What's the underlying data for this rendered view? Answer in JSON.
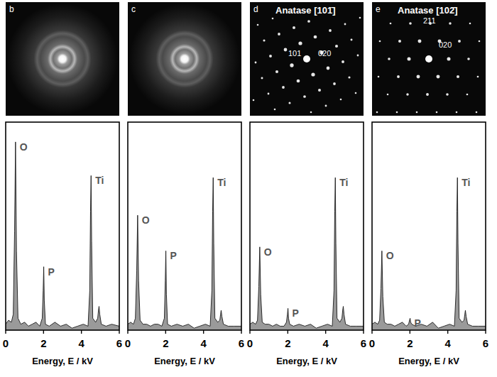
{
  "patterns": [
    {
      "letter": "b",
      "type": "rings"
    },
    {
      "letter": "c",
      "type": "rings"
    },
    {
      "letter": "d",
      "type": "spots",
      "title": "Anatase [101̄]",
      "spot_labels": [
        "101",
        "020"
      ]
    },
    {
      "letter": "e",
      "type": "spots",
      "title": "Anatase [102̄]",
      "spot_labels": [
        "211",
        "020"
      ]
    }
  ],
  "chart_data": [
    {
      "type": "area",
      "xlabel": "Energy, E / kV",
      "xlim": [
        0,
        6
      ],
      "xticks": [
        0,
        2,
        4,
        6
      ],
      "ylim": [
        0,
        105
      ],
      "tick_labels": "x",
      "color": "#9a9a9a",
      "x": [
        0,
        0.15,
        0.3,
        0.4,
        0.47,
        0.52,
        0.57,
        0.65,
        0.8,
        1.0,
        1.2,
        1.4,
        1.6,
        1.8,
        1.93,
        1.98,
        2.01,
        2.04,
        2.1,
        2.3,
        2.6,
        2.9,
        3.2,
        3.5,
        3.8,
        4.1,
        4.35,
        4.44,
        4.48,
        4.51,
        4.54,
        4.6,
        4.75,
        4.86,
        4.9,
        4.93,
        4.97,
        5.05,
        5.3,
        5.6,
        6.0
      ],
      "values": [
        3,
        5,
        4,
        8,
        50,
        95,
        40,
        6,
        3,
        4,
        2,
        3,
        4,
        2,
        6,
        20,
        32,
        15,
        3,
        2,
        4,
        2,
        3,
        1,
        2,
        3,
        2,
        20,
        60,
        78,
        45,
        6,
        4,
        6,
        10,
        12,
        8,
        3,
        2,
        3,
        2
      ],
      "annotations": [
        {
          "text": "O",
          "x": 0.52
        },
        {
          "text": "P",
          "x": 2.01
        },
        {
          "text": "Ti",
          "x": 4.51
        }
      ]
    },
    {
      "type": "area",
      "xlabel": "Energy, E / kV",
      "xlim": [
        0,
        6
      ],
      "xticks": [
        0,
        2,
        4,
        6
      ],
      "ylim": [
        0,
        105
      ],
      "tick_labels": "x",
      "color": "#9a9a9a",
      "x": [
        0,
        0.15,
        0.3,
        0.4,
        0.47,
        0.52,
        0.57,
        0.65,
        0.8,
        1.0,
        1.2,
        1.4,
        1.6,
        1.8,
        1.93,
        1.98,
        2.01,
        2.04,
        2.1,
        2.3,
        2.6,
        2.9,
        3.2,
        3.5,
        3.8,
        4.1,
        4.35,
        4.44,
        4.48,
        4.51,
        4.54,
        4.6,
        4.75,
        4.86,
        4.9,
        4.93,
        4.97,
        5.05,
        5.3,
        5.6,
        6.0
      ],
      "values": [
        3,
        4,
        3,
        6,
        30,
        58,
        25,
        5,
        3,
        3,
        2,
        3,
        3,
        2,
        6,
        25,
        40,
        18,
        3,
        2,
        3,
        2,
        3,
        1,
        2,
        3,
        2,
        20,
        60,
        77,
        44,
        6,
        4,
        5,
        8,
        10,
        7,
        3,
        2,
        2,
        2
      ],
      "annotations": [
        {
          "text": "O",
          "x": 0.52
        },
        {
          "text": "P",
          "x": 2.01
        },
        {
          "text": "Ti",
          "x": 4.51
        }
      ]
    },
    {
      "type": "area",
      "xlabel": "Energy, E / kV",
      "xlim": [
        0,
        6
      ],
      "xticks": [
        0,
        2,
        4,
        6
      ],
      "ylim": [
        0,
        105
      ],
      "tick_labels": "x",
      "color": "#9a9a9a",
      "x": [
        0,
        0.15,
        0.3,
        0.4,
        0.47,
        0.52,
        0.57,
        0.65,
        0.8,
        1.0,
        1.2,
        1.4,
        1.6,
        1.8,
        1.93,
        1.98,
        2.01,
        2.04,
        2.1,
        2.3,
        2.6,
        2.9,
        3.2,
        3.5,
        3.8,
        4.1,
        4.35,
        4.44,
        4.48,
        4.51,
        4.54,
        4.6,
        4.75,
        4.86,
        4.9,
        4.93,
        4.97,
        5.05,
        5.3,
        5.6,
        6.0
      ],
      "values": [
        3,
        4,
        3,
        5,
        22,
        42,
        18,
        4,
        3,
        3,
        2,
        3,
        2,
        2,
        4,
        8,
        11,
        6,
        3,
        2,
        3,
        2,
        3,
        1,
        2,
        3,
        2,
        20,
        60,
        77,
        44,
        6,
        4,
        6,
        10,
        12,
        8,
        3,
        2,
        2,
        2
      ],
      "annotations": [
        {
          "text": "O",
          "x": 0.52
        },
        {
          "text": "P",
          "x": 2.01
        },
        {
          "text": "Ti",
          "x": 4.51
        }
      ]
    },
    {
      "type": "area",
      "xlabel": "Energy, E / kV",
      "xlim": [
        0,
        6
      ],
      "xticks": [
        0,
        2,
        4,
        6
      ],
      "ylim": [
        0,
        105
      ],
      "tick_labels": "x",
      "color": "#9a9a9a",
      "x": [
        0,
        0.15,
        0.3,
        0.4,
        0.47,
        0.52,
        0.57,
        0.65,
        0.8,
        1.0,
        1.2,
        1.4,
        1.6,
        1.8,
        1.93,
        1.98,
        2.01,
        2.04,
        2.1,
        2.3,
        2.6,
        2.9,
        3.2,
        3.5,
        3.8,
        4.1,
        4.35,
        4.44,
        4.48,
        4.51,
        4.54,
        4.6,
        4.75,
        4.86,
        4.9,
        4.93,
        4.97,
        5.05,
        5.3,
        5.6,
        6.0
      ],
      "values": [
        3,
        4,
        3,
        5,
        21,
        40,
        17,
        4,
        3,
        3,
        2,
        3,
        4,
        2,
        3,
        5,
        6,
        4,
        3,
        2,
        3,
        2,
        4,
        1,
        2,
        3,
        2,
        20,
        60,
        77,
        44,
        6,
        4,
        5,
        8,
        10,
        7,
        3,
        2,
        2,
        2
      ],
      "annotations": [
        {
          "text": "O",
          "x": 0.52
        },
        {
          "text": "P",
          "x": 2.01
        },
        {
          "text": "Ti",
          "x": 4.51
        }
      ]
    }
  ]
}
